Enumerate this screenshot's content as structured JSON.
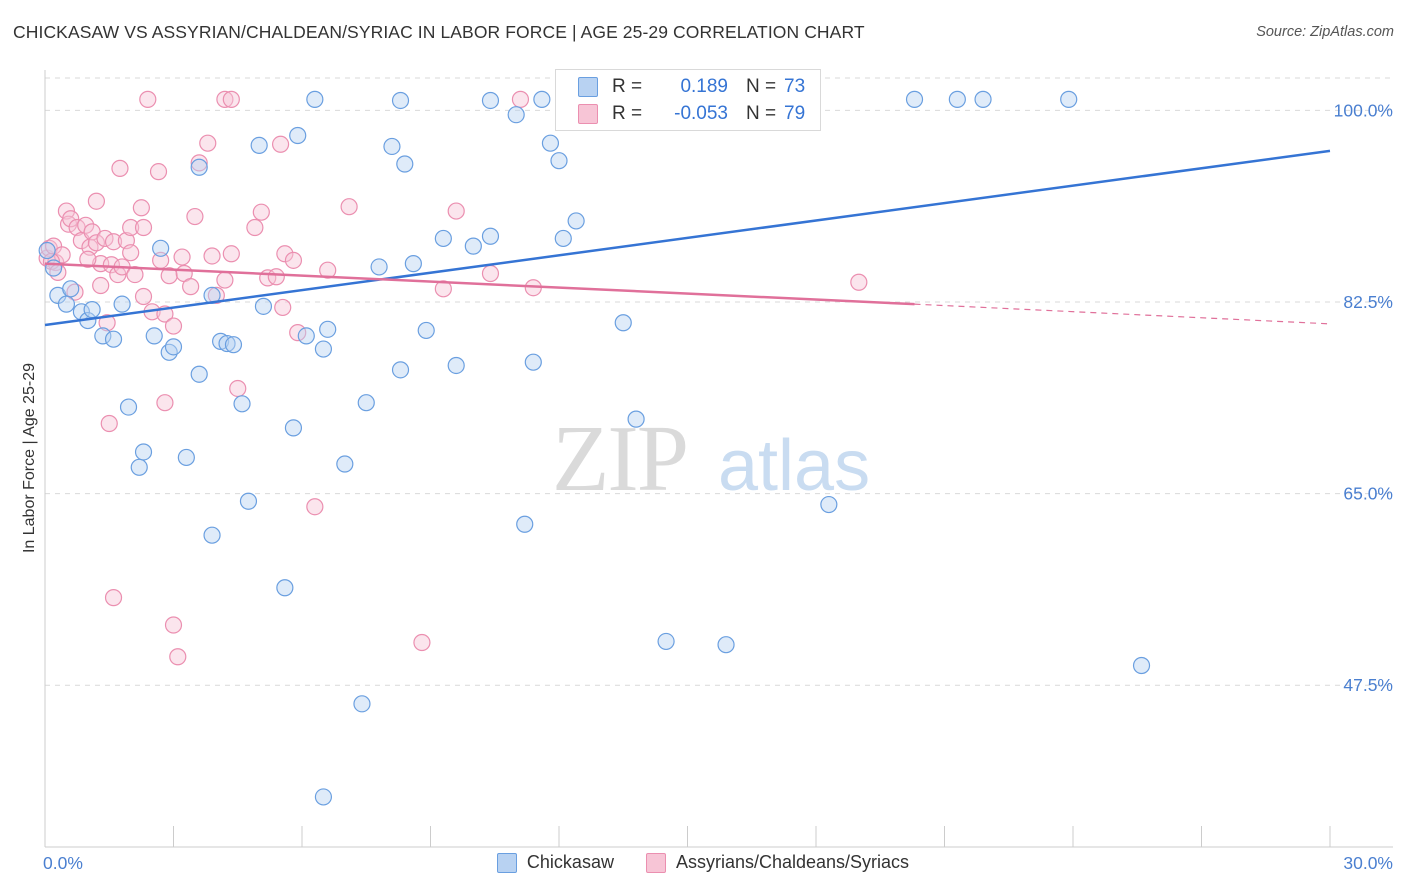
{
  "header": {
    "title": "CHICKASAW VS ASSYRIAN/CHALDEAN/SYRIAC IN LABOR FORCE | AGE 25-29 CORRELATION CHART",
    "source": "Source: ZipAtlas.com"
  },
  "watermark": {
    "zip": "ZIP",
    "atlas": "atlas"
  },
  "legend": {
    "rows": [
      {
        "r_label": "R =",
        "r_value": "0.189",
        "n_label": "N =",
        "n_value": "73"
      },
      {
        "r_label": "R =",
        "r_value": "-0.053",
        "n_label": "N =",
        "n_value": "79"
      }
    ]
  },
  "chart_data": {
    "type": "scatter",
    "title": "CHICKASAW VS ASSYRIAN/CHALDEAN/SYRIAC IN LABOR FORCE | AGE 25-29 CORRELATION CHART",
    "xlabel": "",
    "ylabel": "In Labor Force | Age 25-29",
    "xlim": [
      0,
      30
    ],
    "ylim": [
      33,
      103.5
    ],
    "x_tick_labels": [
      "0.0%",
      "30.0%"
    ],
    "y_ticks": [
      47.5,
      65.0,
      82.5,
      100.0
    ],
    "y_tick_labels": [
      "47.5%",
      "65.0%",
      "82.5%",
      "100.0%"
    ],
    "grid": true,
    "legend_position": "bottom-center",
    "colors": {
      "chickasaw": "#6a9fe0",
      "chickasaw_fill": "#b8d2f2",
      "chickasaw_line": "#3574d4",
      "assyrian": "#eb8fb0",
      "assyrian_fill": "#f7c5d6",
      "assyrian_line": "#e0709a",
      "tick_label": "#4a7fd0",
      "grid": "#d9d9d9"
    },
    "series": [
      {
        "name": "Chickasaw",
        "trend": {
          "x": [
            0,
            30
          ],
          "y": [
            80.4,
            96.3
          ]
        },
        "points": [
          [
            0.05,
            87.2
          ],
          [
            0.2,
            85.6
          ],
          [
            0.3,
            83.1
          ],
          [
            0.5,
            82.3
          ],
          [
            0.6,
            83.7
          ],
          [
            0.85,
            81.6
          ],
          [
            1.0,
            80.8
          ],
          [
            1.1,
            81.8
          ],
          [
            1.35,
            79.4
          ],
          [
            1.6,
            79.1
          ],
          [
            1.8,
            82.3
          ],
          [
            1.95,
            72.9
          ],
          [
            2.2,
            67.4
          ],
          [
            2.3,
            68.8
          ],
          [
            2.55,
            79.4
          ],
          [
            2.7,
            87.4
          ],
          [
            2.9,
            77.9
          ],
          [
            3.0,
            78.4
          ],
          [
            3.3,
            68.3
          ],
          [
            3.6,
            94.8
          ],
          [
            3.6,
            75.9
          ],
          [
            3.9,
            61.2
          ],
          [
            3.9,
            83.1
          ],
          [
            4.1,
            78.9
          ],
          [
            4.25,
            78.7
          ],
          [
            4.4,
            78.6
          ],
          [
            4.6,
            73.2
          ],
          [
            4.75,
            64.3
          ],
          [
            5.0,
            96.8
          ],
          [
            5.1,
            82.1
          ],
          [
            5.6,
            56.4
          ],
          [
            5.8,
            71.0
          ],
          [
            5.9,
            97.7
          ],
          [
            6.1,
            79.4
          ],
          [
            6.3,
            101.0
          ],
          [
            6.5,
            37.3
          ],
          [
            6.5,
            78.2
          ],
          [
            6.6,
            80.0
          ],
          [
            7.0,
            67.7
          ],
          [
            7.4,
            45.8
          ],
          [
            7.5,
            73.3
          ],
          [
            7.8,
            85.7
          ],
          [
            8.1,
            96.7
          ],
          [
            8.3,
            76.3
          ],
          [
            8.4,
            95.1
          ],
          [
            8.6,
            86.0
          ],
          [
            8.9,
            79.9
          ],
          [
            8.3,
            100.9
          ],
          [
            9.3,
            88.3
          ],
          [
            9.6,
            76.7
          ],
          [
            10.0,
            87.6
          ],
          [
            10.4,
            88.5
          ],
          [
            10.4,
            100.9
          ],
          [
            11.0,
            99.6
          ],
          [
            11.4,
            77.0
          ],
          [
            11.2,
            62.2
          ],
          [
            11.6,
            101.0
          ],
          [
            11.8,
            97.0
          ],
          [
            12.0,
            95.4
          ],
          [
            12.1,
            88.3
          ],
          [
            12.3,
            101.0
          ],
          [
            12.4,
            89.9
          ],
          [
            13.5,
            80.6
          ],
          [
            13.8,
            71.8
          ],
          [
            14.6,
            101.0
          ],
          [
            14.5,
            51.5
          ],
          [
            15.9,
            51.2
          ],
          [
            18.3,
            64.0
          ],
          [
            20.3,
            101.0
          ],
          [
            21.3,
            101.0
          ],
          [
            21.9,
            101.0
          ],
          [
            23.9,
            101.0
          ],
          [
            25.6,
            49.3
          ]
        ]
      },
      {
        "name": "Assyrians/Chaldeans/Syriacs",
        "trend": {
          "x": [
            0,
            20.3
          ],
          "y": [
            86.0,
            82.3
          ]
        },
        "trend_dashed": {
          "x": [
            20.3,
            30
          ],
          "y": [
            82.3,
            80.5
          ]
        },
        "points": [
          [
            0.05,
            86.5
          ],
          [
            0.1,
            87.4
          ],
          [
            0.2,
            87.6
          ],
          [
            0.25,
            86.1
          ],
          [
            0.4,
            86.8
          ],
          [
            0.5,
            90.8
          ],
          [
            0.55,
            89.6
          ],
          [
            0.6,
            90.1
          ],
          [
            0.7,
            83.4
          ],
          [
            0.75,
            89.3
          ],
          [
            0.85,
            88.1
          ],
          [
            0.95,
            89.5
          ],
          [
            1.05,
            87.5
          ],
          [
            1.1,
            88.9
          ],
          [
            1.2,
            87.9
          ],
          [
            1.2,
            91.7
          ],
          [
            1.3,
            86.0
          ],
          [
            1.3,
            84.0
          ],
          [
            1.4,
            88.3
          ],
          [
            1.45,
            80.6
          ],
          [
            1.55,
            85.9
          ],
          [
            1.6,
            88.0
          ],
          [
            1.5,
            71.4
          ],
          [
            1.6,
            55.5
          ],
          [
            1.7,
            85.0
          ],
          [
            1.75,
            94.7
          ],
          [
            1.8,
            85.7
          ],
          [
            1.9,
            88.1
          ],
          [
            2.0,
            89.3
          ],
          [
            2.0,
            87.0
          ],
          [
            2.1,
            85.0
          ],
          [
            2.25,
            91.1
          ],
          [
            2.3,
            89.3
          ],
          [
            2.3,
            83.0
          ],
          [
            2.4,
            101.0
          ],
          [
            2.5,
            81.6
          ],
          [
            2.65,
            94.4
          ],
          [
            2.7,
            86.3
          ],
          [
            2.8,
            81.4
          ],
          [
            2.8,
            73.3
          ],
          [
            2.9,
            84.9
          ],
          [
            3.0,
            80.3
          ],
          [
            3.0,
            53.0
          ],
          [
            3.1,
            50.1
          ],
          [
            3.2,
            86.6
          ],
          [
            3.25,
            85.1
          ],
          [
            3.4,
            83.9
          ],
          [
            3.5,
            90.3
          ],
          [
            3.6,
            95.2
          ],
          [
            3.8,
            97.0
          ],
          [
            3.9,
            86.7
          ],
          [
            4.0,
            83.1
          ],
          [
            4.2,
            84.5
          ],
          [
            4.2,
            101.0
          ],
          [
            4.35,
            101.0
          ],
          [
            4.35,
            86.9
          ],
          [
            4.5,
            74.6
          ],
          [
            4.9,
            89.3
          ],
          [
            5.05,
            90.7
          ],
          [
            5.2,
            84.7
          ],
          [
            5.4,
            84.8
          ],
          [
            5.5,
            96.9
          ],
          [
            5.55,
            82.0
          ],
          [
            5.6,
            86.9
          ],
          [
            5.8,
            86.3
          ],
          [
            5.9,
            79.7
          ],
          [
            6.3,
            63.8
          ],
          [
            6.6,
            85.4
          ],
          [
            7.1,
            91.2
          ],
          [
            8.8,
            51.4
          ],
          [
            9.3,
            83.7
          ],
          [
            9.6,
            90.8
          ],
          [
            10.4,
            85.1
          ],
          [
            11.1,
            101.0
          ],
          [
            11.4,
            83.8
          ],
          [
            19.0,
            84.3
          ],
          [
            0.15,
            86.2
          ],
          [
            0.3,
            85.2
          ],
          [
            1.0,
            86.4
          ]
        ]
      }
    ]
  }
}
